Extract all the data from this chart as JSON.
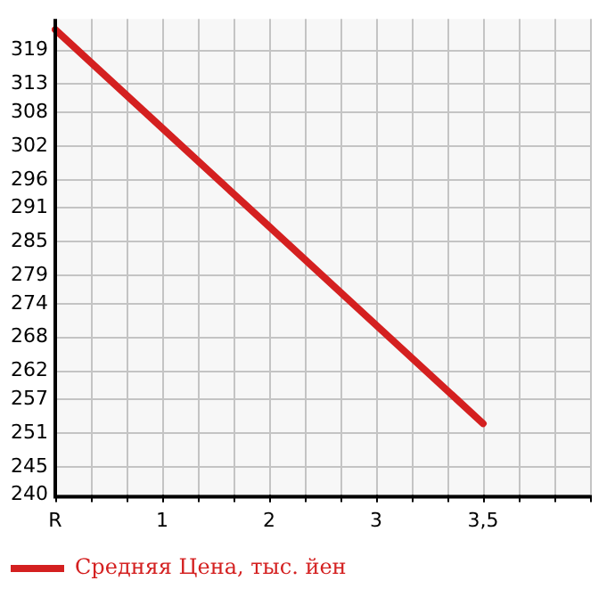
{
  "chart_data": {
    "type": "line",
    "categories": [
      "R",
      "1",
      "2",
      "3",
      "3,5",
      null
    ],
    "series": [
      {
        "name": "Средняя Цена, тыс. йен",
        "color": "#d42020",
        "values": [
          322.7,
          305.2,
          287.7,
          270.2,
          252.7,
          null
        ]
      }
    ],
    "ylim": [
      240,
      324.6
    ],
    "yticks": [
      240,
      245,
      251,
      257,
      262,
      268,
      274,
      279,
      285,
      291,
      296,
      302,
      308,
      313,
      319
    ],
    "grid": true,
    "legend": "bottom left",
    "marker": "none",
    "line_style": "solid"
  }
}
